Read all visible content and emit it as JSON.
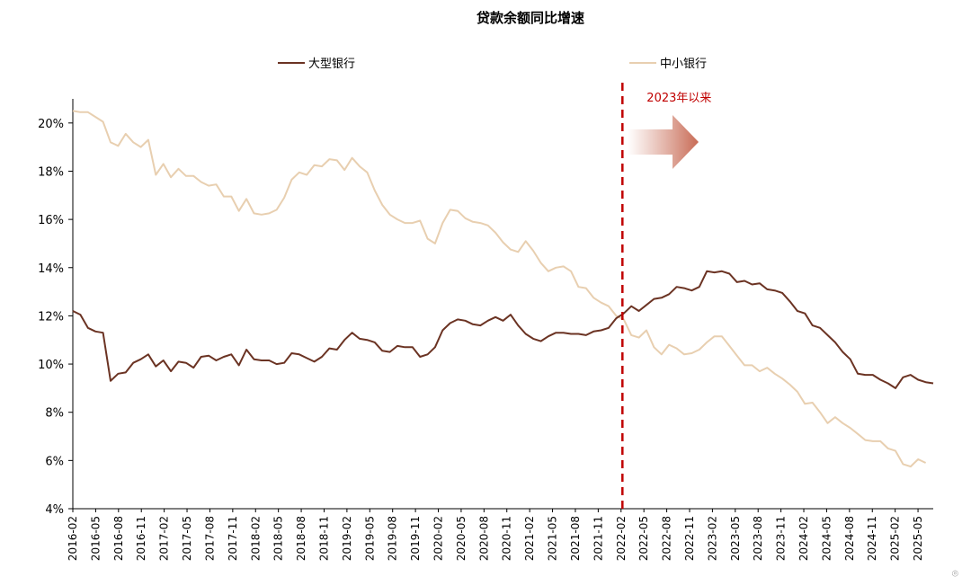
{
  "chart_data": {
    "type": "line",
    "title": "贷款余额同比增速",
    "xlabel": "",
    "ylabel": "",
    "ylim": [
      4,
      21
    ],
    "yticks": [
      4,
      6,
      8,
      10,
      12,
      14,
      16,
      18,
      20
    ],
    "y_tick_suffix": "%",
    "legend_position": "top",
    "grid": false,
    "x_tick_labels": [
      "2016-02",
      "2016-05",
      "2016-08",
      "2016-11",
      "2017-02",
      "2017-05",
      "2017-08",
      "2017-11",
      "2018-02",
      "2018-05",
      "2018-08",
      "2018-11",
      "2019-02",
      "2019-05",
      "2019-08",
      "2019-11",
      "2020-02",
      "2020-05",
      "2020-08",
      "2020-11",
      "2021-02",
      "2021-05",
      "2021-08",
      "2021-11",
      "2022-02",
      "2022-05",
      "2022-08",
      "2022-11",
      "2023-02",
      "2023-05",
      "2023-08",
      "2023-11",
      "2024-02",
      "2024-05",
      "2024-08",
      "2024-11",
      "2025-02",
      "2025-05"
    ],
    "x_start": "2016-02",
    "x_end": "2025-07",
    "annotation": {
      "text": "2023年以来",
      "x": "2022-01",
      "color": "#c00000"
    },
    "series": [
      {
        "name": "大型银行",
        "color": "#6b3323",
        "values": [
          12.2,
          12.05,
          11.5,
          11.35,
          11.3,
          9.3,
          9.6,
          9.65,
          10.05,
          10.2,
          10.4,
          9.9,
          10.15,
          9.7,
          10.1,
          10.05,
          9.85,
          10.3,
          10.35,
          10.15,
          10.3,
          10.4,
          9.95,
          10.6,
          10.2,
          10.15,
          10.15,
          10.0,
          10.05,
          10.45,
          10.4,
          10.25,
          10.1,
          10.3,
          10.65,
          10.6,
          11.0,
          11.3,
          11.05,
          11.0,
          10.9,
          10.55,
          10.5,
          10.75,
          10.7,
          10.7,
          10.3,
          10.4,
          10.7,
          11.4,
          11.7,
          11.85,
          11.8,
          11.65,
          11.6,
          11.8,
          11.95,
          11.8,
          12.05,
          11.6,
          11.25,
          11.05,
          10.95,
          11.15,
          11.3,
          11.3,
          11.25,
          11.25,
          11.2,
          11.35,
          11.4,
          11.5,
          11.9,
          12.1,
          12.4,
          12.2,
          12.45,
          12.7,
          12.75,
          12.9,
          13.2,
          13.15,
          13.05,
          13.2,
          13.85,
          13.8,
          13.85,
          13.75,
          13.4,
          13.45,
          13.3,
          13.35,
          13.1,
          13.05,
          12.95,
          12.6,
          12.2,
          12.1,
          11.6,
          11.5,
          11.2,
          10.9,
          10.5,
          10.2,
          9.6,
          9.55,
          9.55,
          9.35,
          9.2,
          9.0,
          9.45,
          9.55,
          9.35,
          9.25,
          9.2
        ]
      },
      {
        "name": "中小银行",
        "color": "#e8cfb0",
        "values": [
          20.5,
          20.45,
          20.45,
          20.25,
          20.05,
          19.2,
          19.05,
          19.55,
          19.2,
          19.0,
          19.3,
          17.85,
          18.3,
          17.75,
          18.1,
          17.8,
          17.8,
          17.55,
          17.4,
          17.45,
          16.95,
          16.95,
          16.35,
          16.85,
          16.25,
          16.2,
          16.25,
          16.4,
          16.9,
          17.65,
          17.95,
          17.85,
          18.25,
          18.2,
          18.5,
          18.45,
          18.05,
          18.55,
          18.2,
          17.95,
          17.2,
          16.6,
          16.2,
          16.0,
          15.85,
          15.85,
          15.95,
          15.2,
          15.0,
          15.85,
          16.4,
          16.35,
          16.05,
          15.9,
          15.85,
          15.75,
          15.45,
          15.05,
          14.75,
          14.65,
          15.1,
          14.7,
          14.2,
          13.85,
          14.0,
          14.05,
          13.85,
          13.2,
          13.15,
          12.75,
          12.55,
          12.4,
          12.0,
          11.85,
          11.2,
          11.1,
          11.4,
          10.7,
          10.4,
          10.8,
          10.65,
          10.4,
          10.45,
          10.6,
          10.9,
          11.15,
          11.15,
          10.75,
          10.35,
          9.95,
          9.95,
          9.7,
          9.85,
          9.6,
          9.4,
          9.15,
          8.85,
          8.35,
          8.4,
          8.0,
          7.55,
          7.8,
          7.55,
          7.35,
          7.1,
          6.85,
          6.8,
          6.8,
          6.5,
          6.4,
          5.85,
          5.75,
          6.05,
          5.9
        ]
      }
    ]
  }
}
